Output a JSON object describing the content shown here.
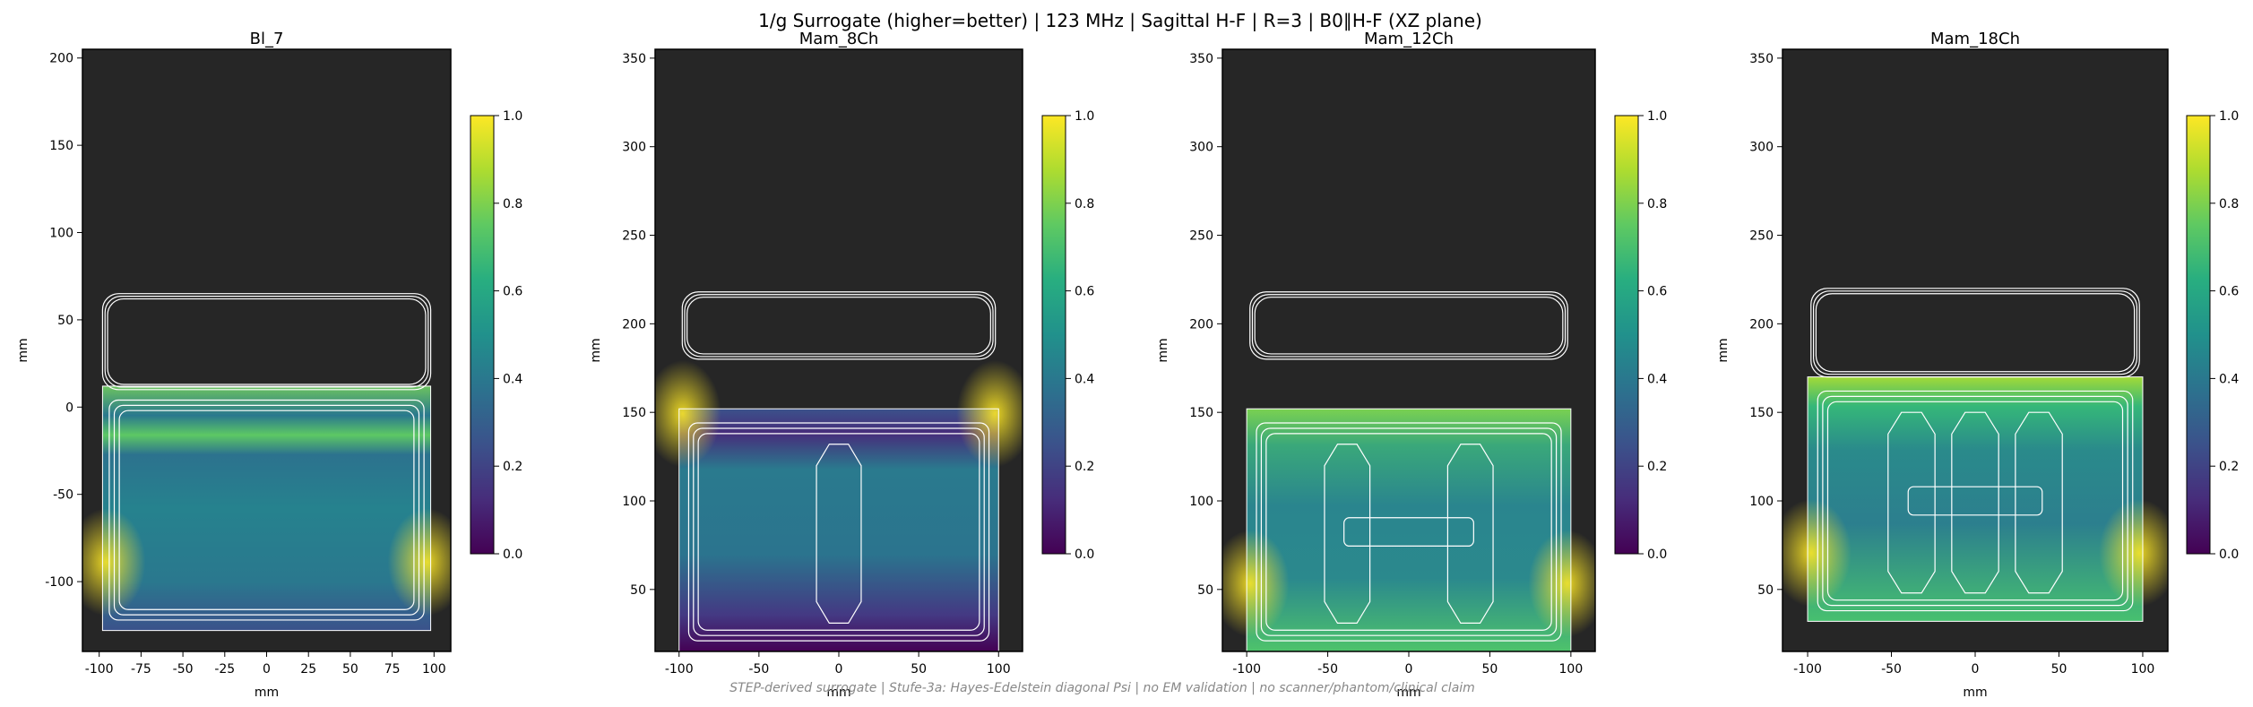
{
  "figure": {
    "title": "1/g Surrogate (higher=better) | 123 MHz | Sagittal H-F | R=3 | B0∥H-F (XZ plane)",
    "footnote": "STEP-derived surrogate | Stufe-3a: Hayes-Edelstein diagonal Psi | no EM validation | no scanner/phantom/clinical claim"
  },
  "colors": {
    "background": "#262626",
    "outline": "#ffffff",
    "colormap": "viridis"
  },
  "chart_data": [
    {
      "type": "heatmap",
      "title": "Bl_7",
      "xlabel": "mm",
      "ylabel": "mm",
      "xlim": [
        -110,
        110
      ],
      "ylim": [
        -140,
        205
      ],
      "xticks": [
        -100,
        -75,
        -50,
        -25,
        0,
        25,
        50,
        75,
        100
      ],
      "yticks": [
        -100,
        -50,
        0,
        50,
        100,
        150,
        200
      ],
      "field_extent": {
        "x": [
          -98,
          98
        ],
        "y": [
          -128,
          12
        ]
      },
      "colorbar": {
        "min": 0.0,
        "max": 1.0,
        "ticks": [
          "0.0",
          "0.2",
          "0.4",
          "0.6",
          "0.8",
          "1.0"
        ]
      }
    },
    {
      "type": "heatmap",
      "title": "Mam_8Ch",
      "xlabel": "mm",
      "ylabel": "mm",
      "xlim": [
        -115,
        115
      ],
      "ylim": [
        15,
        355
      ],
      "xticks": [
        -100,
        -50,
        0,
        50,
        100
      ],
      "yticks": [
        50,
        100,
        150,
        200,
        250,
        300,
        350
      ],
      "field_extent": {
        "x": [
          -100,
          100
        ],
        "y": [
          15,
          152
        ]
      },
      "colorbar": {
        "min": 0.0,
        "max": 1.0,
        "ticks": [
          "0.0",
          "0.2",
          "0.4",
          "0.6",
          "0.8",
          "1.0"
        ]
      }
    },
    {
      "type": "heatmap",
      "title": "Mam_12Ch",
      "xlabel": "mm",
      "ylabel": "mm",
      "xlim": [
        -115,
        115
      ],
      "ylim": [
        15,
        355
      ],
      "xticks": [
        -100,
        -50,
        0,
        50,
        100
      ],
      "yticks": [
        50,
        100,
        150,
        200,
        250,
        300,
        350
      ],
      "field_extent": {
        "x": [
          -100,
          100
        ],
        "y": [
          15,
          152
        ]
      },
      "colorbar": {
        "min": 0.0,
        "max": 1.0,
        "ticks": [
          "0.0",
          "0.2",
          "0.4",
          "0.6",
          "0.8",
          "1.0"
        ]
      }
    },
    {
      "type": "heatmap",
      "title": "Mam_18Ch",
      "xlabel": "mm",
      "ylabel": "mm",
      "xlim": [
        -115,
        115
      ],
      "ylim": [
        15,
        355
      ],
      "xticks": [
        -100,
        -50,
        0,
        50,
        100
      ],
      "yticks": [
        50,
        100,
        150,
        200,
        250,
        300,
        350
      ],
      "field_extent": {
        "x": [
          -100,
          100
        ],
        "y": [
          32,
          170
        ]
      },
      "colorbar": {
        "min": 0.0,
        "max": 1.0,
        "ticks": [
          "0.0",
          "0.2",
          "0.4",
          "0.6",
          "0.8",
          "1.0"
        ]
      }
    }
  ]
}
